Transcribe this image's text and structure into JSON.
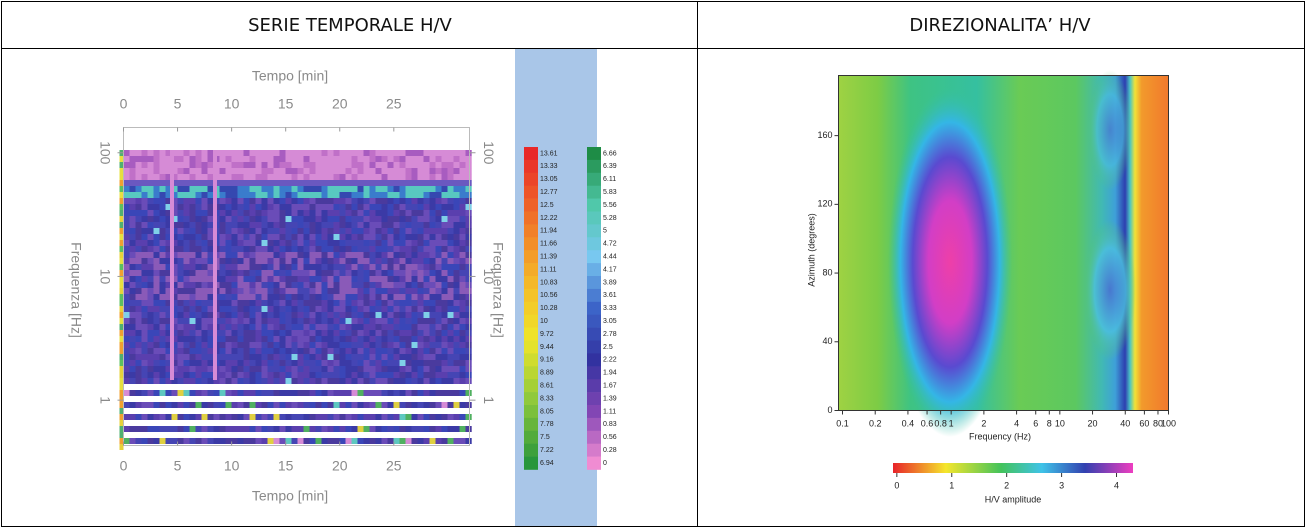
{
  "header": {
    "left": "SERIE TEMPORALE H/V",
    "right": "DIREZIONALITA’ H/V"
  },
  "time_series": {
    "x_label": "Tempo [min]",
    "y_label": "Frequenza [Hz]",
    "xlim": [
      0,
      32
    ],
    "xticks": [
      0,
      5,
      10,
      15,
      20,
      25
    ],
    "ylim": [
      0.43,
      160
    ],
    "yticks": [
      100,
      10,
      1
    ],
    "log_y": true,
    "colorbar_left": [
      13.61,
      13.33,
      13.05,
      12.77,
      12.5,
      12.22,
      11.94,
      11.66,
      11.39,
      11.11,
      10.83,
      10.56,
      10.28,
      10,
      9.72,
      9.44,
      9.16,
      8.89,
      8.61,
      8.33,
      8.05,
      7.78,
      7.5,
      7.22,
      6.94
    ],
    "colorbar_right": [
      6.66,
      6.39,
      6.11,
      5.83,
      5.56,
      5.28,
      5,
      4.72,
      4.44,
      4.17,
      3.89,
      3.61,
      3.33,
      3.05,
      2.78,
      2.5,
      2.22,
      1.94,
      1.67,
      1.39,
      1.11,
      0.83,
      0.56,
      0.28,
      0
    ]
  },
  "directionality": {
    "x_label": "Frequency (Hz)",
    "y_label": "Azimuth (degrees)",
    "xlim": [
      0.1,
      100
    ],
    "xticks": [
      0.1,
      0.2,
      0.4,
      0.6,
      0.8,
      1,
      2,
      4,
      6,
      8,
      10,
      20,
      40,
      60,
      80,
      100
    ],
    "log_x": true,
    "ylim": [
      0,
      195
    ],
    "yticks": [
      0,
      40,
      80,
      120,
      160
    ],
    "colorbar_label": "H/V amplitude",
    "colorbar_lim": [
      -0.07,
      4.3
    ],
    "colorbar_ticks": [
      0,
      1,
      2,
      3,
      4
    ]
  }
}
